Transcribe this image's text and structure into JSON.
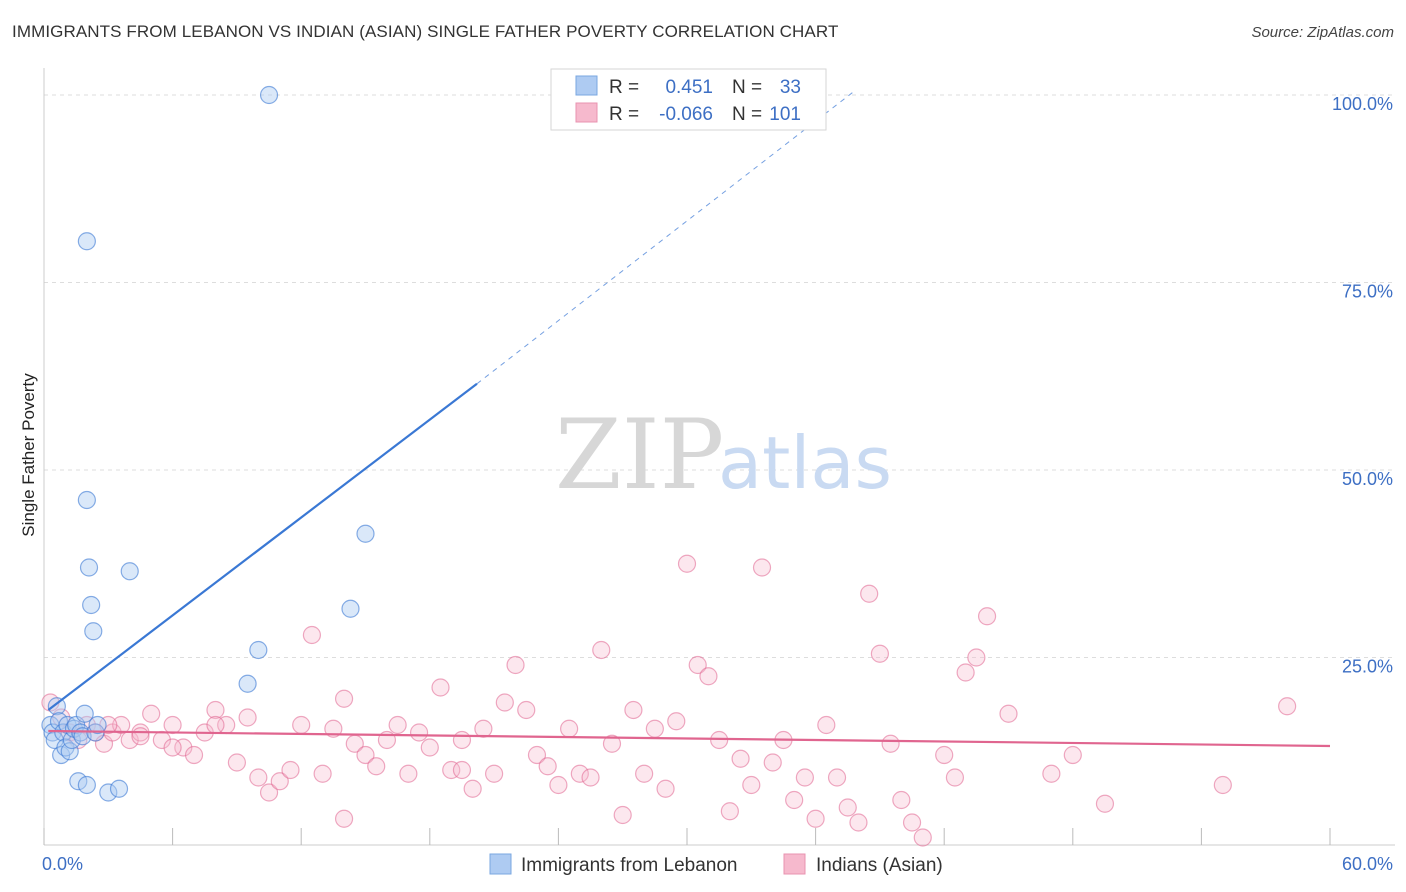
{
  "title": "IMMIGRANTS FROM LEBANON VS INDIAN (ASIAN) SINGLE FATHER POVERTY CORRELATION CHART",
  "source": "Source: ZipAtlas.com",
  "watermark": {
    "zip": "ZIP",
    "atlas": "atlas"
  },
  "colors": {
    "blue": "#3a78d4",
    "blue_fill": "#aecbf2",
    "pink": "#e0658f",
    "pink_fill": "#f6b9cd",
    "tick": "#3d6fc4"
  },
  "legend": {
    "rows": [
      {
        "r_label": "R =",
        "r_value": "0.451",
        "n_label": "N =",
        "n_value": "33"
      },
      {
        "r_label": "R =",
        "r_value": "-0.066",
        "n_label": "N =",
        "n_value": "101"
      }
    ]
  },
  "bottom_legend": [
    "Immigrants from Lebanon",
    "Indians (Asian)"
  ],
  "chart_data": {
    "type": "scatter",
    "xlabel": "",
    "ylabel": "Single Father Poverty",
    "xlim": [
      0,
      60
    ],
    "ylim": [
      0,
      102
    ],
    "x_tick_labels": [
      "0.0%",
      "60.0%"
    ],
    "y_tick_labels": [
      "100.0%",
      "75.0%",
      "50.0%",
      "25.0%"
    ],
    "y_ticks": [
      100,
      75,
      50,
      25
    ],
    "series": [
      {
        "name": "Immigrants from Lebanon",
        "color": "blue",
        "trend": {
          "x0": 0.2,
          "y0": 18,
          "x1": 20.2,
          "y1": 61.5,
          "dash_to_x": 37.8,
          "dash_to_y": 100.5
        },
        "points": [
          [
            0.3,
            16
          ],
          [
            0.4,
            15
          ],
          [
            0.5,
            14
          ],
          [
            0.6,
            18.5
          ],
          [
            0.7,
            16.5
          ],
          [
            0.8,
            12
          ],
          [
            0.9,
            15
          ],
          [
            1.0,
            13
          ],
          [
            1.1,
            16
          ],
          [
            1.2,
            12.5
          ],
          [
            1.3,
            14
          ],
          [
            1.4,
            15.5
          ],
          [
            1.5,
            16
          ],
          [
            1.6,
            8.5
          ],
          [
            1.7,
            15
          ],
          [
            1.8,
            14.5
          ],
          [
            1.9,
            17.5
          ],
          [
            2.0,
            8
          ],
          [
            2.1,
            37
          ],
          [
            2.2,
            32
          ],
          [
            2.3,
            28.5
          ],
          [
            2.4,
            15
          ],
          [
            2.5,
            16
          ],
          [
            2.0,
            46
          ],
          [
            2.0,
            80.5
          ],
          [
            4.0,
            36.5
          ],
          [
            3.0,
            7
          ],
          [
            3.5,
            7.5
          ],
          [
            9.5,
            21.5
          ],
          [
            10.0,
            26
          ],
          [
            14.3,
            31.5
          ],
          [
            15.0,
            41.5
          ],
          [
            10.5,
            100
          ]
        ]
      },
      {
        "name": "Indians (Asian)",
        "color": "pink",
        "trend": {
          "x0": 0.2,
          "y0": 15.2,
          "x1": 60,
          "y1": 13.2
        },
        "points": [
          [
            0.3,
            19
          ],
          [
            0.8,
            17
          ],
          [
            1.2,
            15
          ],
          [
            1.6,
            14
          ],
          [
            2.0,
            16
          ],
          [
            2.4,
            15
          ],
          [
            2.8,
            13.5
          ],
          [
            3.2,
            15
          ],
          [
            3.6,
            16
          ],
          [
            4.0,
            14
          ],
          [
            4.5,
            15
          ],
          [
            5.0,
            17.5
          ],
          [
            5.5,
            14
          ],
          [
            6.0,
            16
          ],
          [
            6.5,
            13
          ],
          [
            7.0,
            12
          ],
          [
            7.5,
            15
          ],
          [
            8.0,
            18
          ],
          [
            8.5,
            16
          ],
          [
            9.0,
            11
          ],
          [
            9.5,
            17
          ],
          [
            10.0,
            9
          ],
          [
            10.5,
            7
          ],
          [
            11.0,
            8.5
          ],
          [
            11.5,
            10
          ],
          [
            12.0,
            16
          ],
          [
            12.5,
            28
          ],
          [
            13.0,
            9.5
          ],
          [
            13.5,
            15.5
          ],
          [
            14.0,
            19.5
          ],
          [
            14.5,
            13.5
          ],
          [
            15.0,
            12
          ],
          [
            15.5,
            10.5
          ],
          [
            16.0,
            14
          ],
          [
            16.5,
            16
          ],
          [
            17.0,
            9.5
          ],
          [
            17.5,
            15
          ],
          [
            18.0,
            13
          ],
          [
            18.5,
            21
          ],
          [
            19.0,
            10
          ],
          [
            19.5,
            10
          ],
          [
            20.0,
            7.5
          ],
          [
            20.5,
            15.5
          ],
          [
            21.0,
            9.5
          ],
          [
            21.5,
            19
          ],
          [
            22.0,
            24
          ],
          [
            22.5,
            18
          ],
          [
            23.0,
            12
          ],
          [
            23.5,
            10.5
          ],
          [
            24.0,
            8
          ],
          [
            24.5,
            15.5
          ],
          [
            25.0,
            9.5
          ],
          [
            25.5,
            9
          ],
          [
            26.0,
            26
          ],
          [
            26.5,
            13.5
          ],
          [
            27.0,
            4
          ],
          [
            27.5,
            18
          ],
          [
            28.0,
            9.5
          ],
          [
            28.5,
            15.5
          ],
          [
            29.0,
            7.5
          ],
          [
            29.5,
            16.5
          ],
          [
            30.0,
            37.5
          ],
          [
            30.5,
            24
          ],
          [
            31.0,
            22.5
          ],
          [
            31.5,
            14
          ],
          [
            32.0,
            4.5
          ],
          [
            32.5,
            11.5
          ],
          [
            33.0,
            8
          ],
          [
            33.5,
            37
          ],
          [
            34.0,
            11
          ],
          [
            34.5,
            14
          ],
          [
            35.0,
            6
          ],
          [
            35.5,
            9
          ],
          [
            36.0,
            3.5
          ],
          [
            36.5,
            16
          ],
          [
            37.0,
            9
          ],
          [
            37.5,
            5
          ],
          [
            38.0,
            3
          ],
          [
            38.5,
            33.5
          ],
          [
            39.0,
            25.5
          ],
          [
            39.5,
            13.5
          ],
          [
            40.0,
            6
          ],
          [
            40.5,
            3
          ],
          [
            41.0,
            1
          ],
          [
            42.0,
            12
          ],
          [
            42.5,
            9
          ],
          [
            43.0,
            23
          ],
          [
            43.5,
            25
          ],
          [
            44.0,
            30.5
          ],
          [
            45.0,
            17.5
          ],
          [
            47.0,
            9.5
          ],
          [
            48.0,
            12
          ],
          [
            49.5,
            5.5
          ],
          [
            55.0,
            8
          ],
          [
            58.0,
            18.5
          ],
          [
            14.0,
            3.5
          ],
          [
            8.0,
            16
          ],
          [
            19.5,
            14
          ],
          [
            6.0,
            13
          ],
          [
            4.5,
            14.5
          ],
          [
            3.0,
            16
          ]
        ]
      }
    ]
  }
}
